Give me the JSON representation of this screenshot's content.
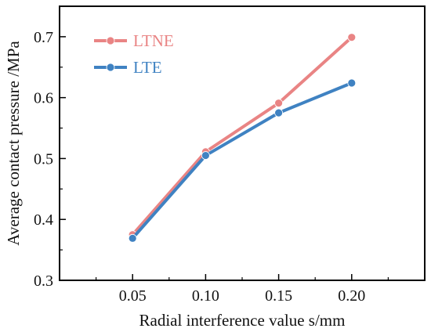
{
  "chart_data": {
    "type": "line",
    "x": [
      0.05,
      0.1,
      0.15,
      0.2
    ],
    "x_tick_labels": [
      "0.05",
      "0.10",
      "0.15",
      "0.20"
    ],
    "xlim": [
      0.0,
      0.25
    ],
    "y_ticks": [
      0.3,
      0.4,
      0.5,
      0.6,
      0.7
    ],
    "y_tick_labels": [
      "0.3",
      "0.4",
      "0.5",
      "0.6",
      "0.7"
    ],
    "ylim": [
      0.3,
      0.75
    ],
    "xlabel": "Radial interference value s/mm",
    "ylabel": "Average contact pressure /MPa",
    "grid": false,
    "legend": "top-left",
    "series": [
      {
        "name": "LTNE",
        "color": "#e98484",
        "values": [
          0.375,
          0.511,
          0.591,
          0.699
        ]
      },
      {
        "name": "LTE",
        "color": "#3f82c2",
        "values": [
          0.369,
          0.505,
          0.575,
          0.624
        ]
      }
    ]
  }
}
